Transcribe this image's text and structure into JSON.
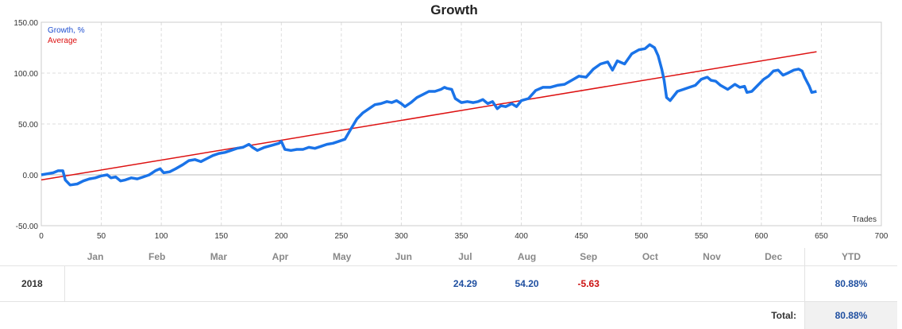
{
  "chart_data": {
    "type": "line",
    "title": "Growth",
    "xlabel": "Trades",
    "ylabel": "",
    "xlim": [
      0,
      700
    ],
    "ylim": [
      -50,
      150
    ],
    "x_ticks": [
      "0",
      "50",
      "100",
      "150",
      "200",
      "250",
      "300",
      "350",
      "400",
      "450",
      "500",
      "550",
      "600",
      "650",
      "700"
    ],
    "y_ticks": [
      "150.00",
      "100.00",
      "50.00",
      "0.00",
      "-50.00"
    ],
    "grid": true,
    "legend": "top-left",
    "series": [
      {
        "name": "Growth, %",
        "color": "#1a73e8",
        "points": [
          [
            0,
            0
          ],
          [
            5,
            1
          ],
          [
            10,
            2
          ],
          [
            14,
            4
          ],
          [
            18,
            4
          ],
          [
            20,
            -5
          ],
          [
            24,
            -10
          ],
          [
            30,
            -9
          ],
          [
            35,
            -6
          ],
          [
            40,
            -4
          ],
          [
            45,
            -3
          ],
          [
            50,
            -1
          ],
          [
            55,
            0
          ],
          [
            58,
            -3
          ],
          [
            62,
            -2
          ],
          [
            66,
            -6
          ],
          [
            70,
            -5
          ],
          [
            75,
            -3
          ],
          [
            80,
            -4
          ],
          [
            85,
            -2
          ],
          [
            90,
            0
          ],
          [
            95,
            4
          ],
          [
            99,
            6
          ],
          [
            102,
            2
          ],
          [
            107,
            3
          ],
          [
            112,
            6
          ],
          [
            118,
            10
          ],
          [
            123,
            14
          ],
          [
            128,
            15
          ],
          [
            133,
            13
          ],
          [
            138,
            16
          ],
          [
            143,
            19
          ],
          [
            148,
            21
          ],
          [
            153,
            22
          ],
          [
            158,
            24
          ],
          [
            163,
            26
          ],
          [
            168,
            27
          ],
          [
            173,
            30
          ],
          [
            176,
            27
          ],
          [
            180,
            24
          ],
          [
            186,
            27
          ],
          [
            192,
            29
          ],
          [
            198,
            31
          ],
          [
            200,
            33
          ],
          [
            203,
            25
          ],
          [
            208,
            24
          ],
          [
            213,
            25
          ],
          [
            218,
            25
          ],
          [
            223,
            27
          ],
          [
            228,
            26
          ],
          [
            233,
            28
          ],
          [
            238,
            30
          ],
          [
            243,
            31
          ],
          [
            248,
            33
          ],
          [
            253,
            35
          ],
          [
            258,
            45
          ],
          [
            263,
            55
          ],
          [
            268,
            61
          ],
          [
            273,
            65
          ],
          [
            278,
            69
          ],
          [
            283,
            70
          ],
          [
            288,
            72
          ],
          [
            292,
            71
          ],
          [
            296,
            73
          ],
          [
            300,
            70
          ],
          [
            303,
            67
          ],
          [
            308,
            71
          ],
          [
            313,
            76
          ],
          [
            318,
            79
          ],
          [
            323,
            82
          ],
          [
            328,
            82
          ],
          [
            333,
            84
          ],
          [
            336,
            86
          ],
          [
            338,
            85
          ],
          [
            342,
            84
          ],
          [
            345,
            75
          ],
          [
            350,
            71
          ],
          [
            355,
            72
          ],
          [
            360,
            71
          ],
          [
            364,
            72
          ],
          [
            368,
            74
          ],
          [
            372,
            70
          ],
          [
            376,
            72
          ],
          [
            380,
            65
          ],
          [
            383,
            68
          ],
          [
            387,
            67
          ],
          [
            392,
            70
          ],
          [
            396,
            67
          ],
          [
            400,
            73
          ],
          [
            406,
            75
          ],
          [
            412,
            83
          ],
          [
            418,
            86
          ],
          [
            424,
            86
          ],
          [
            430,
            88
          ],
          [
            436,
            89
          ],
          [
            442,
            93
          ],
          [
            448,
            97
          ],
          [
            454,
            96
          ],
          [
            460,
            104
          ],
          [
            466,
            109
          ],
          [
            472,
            111
          ],
          [
            476,
            103
          ],
          [
            480,
            112
          ],
          [
            486,
            109
          ],
          [
            492,
            119
          ],
          [
            498,
            123
          ],
          [
            503,
            124
          ],
          [
            507,
            128
          ],
          [
            511,
            125
          ],
          [
            514,
            117
          ],
          [
            517,
            104
          ],
          [
            519,
            93
          ],
          [
            521,
            76
          ],
          [
            524,
            73
          ],
          [
            530,
            82
          ],
          [
            535,
            84
          ],
          [
            540,
            86
          ],
          [
            545,
            88
          ],
          [
            550,
            94
          ],
          [
            555,
            96
          ],
          [
            558,
            93
          ],
          [
            562,
            92
          ],
          [
            566,
            88
          ],
          [
            572,
            84
          ],
          [
            578,
            89
          ],
          [
            582,
            86
          ],
          [
            586,
            87
          ],
          [
            588,
            81
          ],
          [
            592,
            82
          ],
          [
            597,
            88
          ],
          [
            602,
            94
          ],
          [
            606,
            97
          ],
          [
            610,
            102
          ],
          [
            614,
            103
          ],
          [
            618,
            98
          ],
          [
            622,
            100
          ],
          [
            627,
            103
          ],
          [
            631,
            104
          ],
          [
            634,
            102
          ],
          [
            636,
            96
          ],
          [
            640,
            87
          ],
          [
            642,
            81
          ],
          [
            646,
            82
          ]
        ]
      },
      {
        "name": "Average",
        "color": "#dd1111",
        "points": [
          [
            0,
            -5
          ],
          [
            646,
            121
          ]
        ]
      }
    ],
    "table": {
      "months": [
        "Jan",
        "Feb",
        "Mar",
        "Apr",
        "May",
        "Jun",
        "Jul",
        "Aug",
        "Sep",
        "Oct",
        "Nov",
        "Dec"
      ],
      "ytd_header": "YTD",
      "year": "2018",
      "values": [
        "",
        "",
        "",
        "",
        "",
        "",
        "24.29",
        "54.20",
        "-5.63",
        "",
        "",
        ""
      ],
      "ytd": "80.88%",
      "total_label": "Total:",
      "total_value": "80.88%"
    }
  }
}
